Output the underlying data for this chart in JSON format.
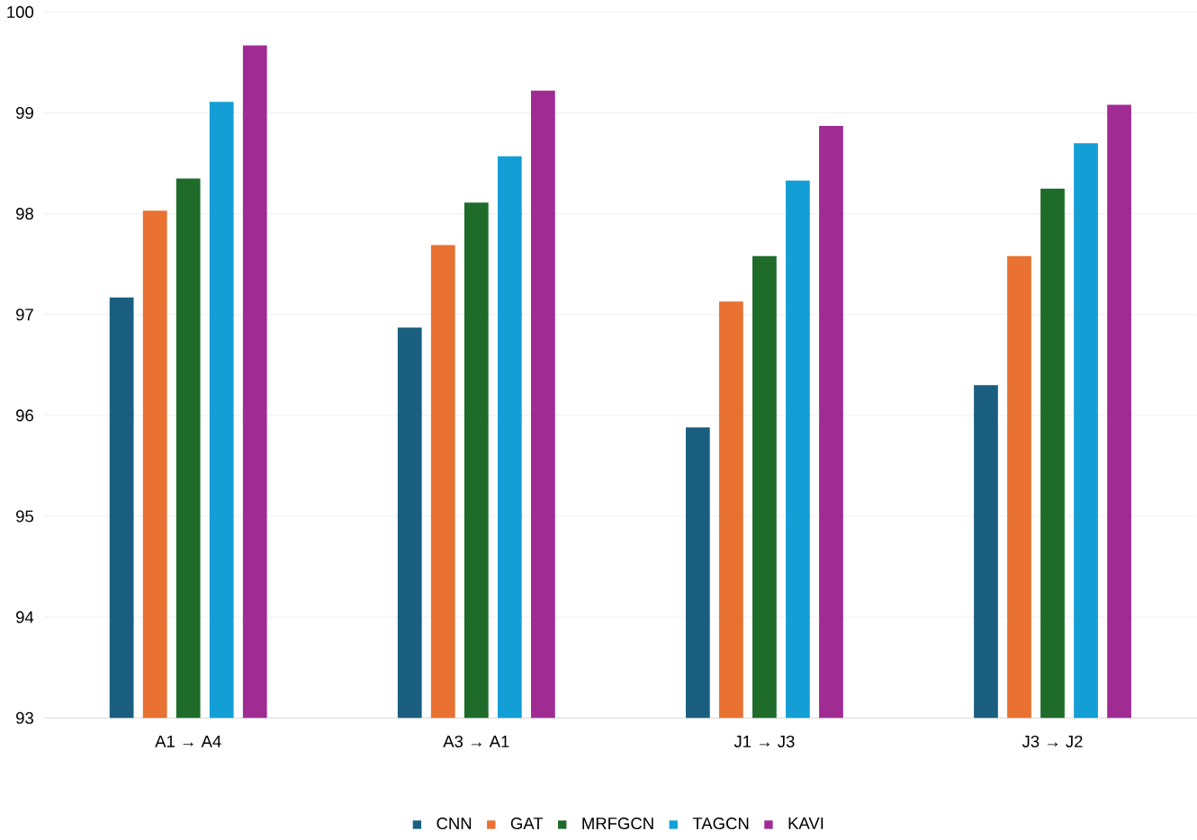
{
  "chart_data": {
    "type": "bar",
    "categories": [
      "A1 → A4",
      "A3 → A1",
      "J1 → J3",
      "J3 → J2"
    ],
    "series": [
      {
        "name": "CNN",
        "color": "#1a5f80",
        "values": [
          97.17,
          96.87,
          95.88,
          96.3
        ]
      },
      {
        "name": "GAT",
        "color": "#e97132",
        "values": [
          98.03,
          97.69,
          97.13,
          97.58
        ]
      },
      {
        "name": "MRFGCN",
        "color": "#1e6b2a",
        "values": [
          98.35,
          98.11,
          97.58,
          98.25
        ]
      },
      {
        "name": "TAGCN",
        "color": "#139fd6",
        "values": [
          99.11,
          98.57,
          98.33,
          98.7
        ]
      },
      {
        "name": "KAVI",
        "color": "#a02b93",
        "values": [
          99.67,
          99.22,
          98.87,
          99.08
        ]
      }
    ],
    "ylim": [
      93,
      100
    ],
    "yticks": [
      93,
      94,
      95,
      96,
      97,
      98,
      99,
      100
    ],
    "grid": "y",
    "legend": "bottom"
  }
}
